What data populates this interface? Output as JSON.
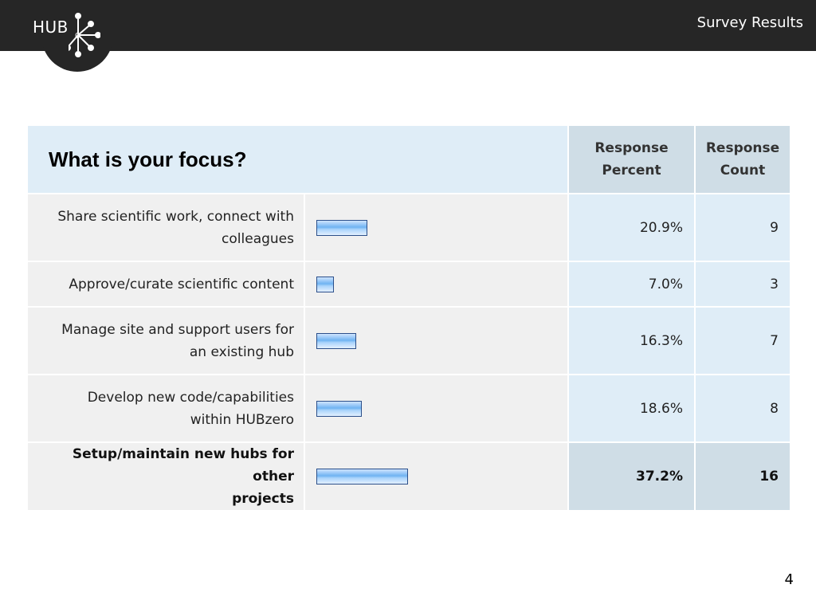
{
  "header": {
    "logo_text": "HUB",
    "title": "Survey Results"
  },
  "chart_data": {
    "type": "table",
    "title": "What is your focus?",
    "columns": [
      "Response Percent",
      "Response Count"
    ],
    "column_heads": [
      {
        "line1": "Response",
        "line2": "Percent"
      },
      {
        "line1": "Response",
        "line2": "Count"
      }
    ],
    "rows": [
      {
        "line1": "Share scientific work, connect with",
        "line2": "colleagues",
        "percent": 20.9,
        "percent_label": "20.9%",
        "count": 9,
        "count_label": "9"
      },
      {
        "line1": "Approve/curate scientific content",
        "line2": "",
        "percent": 7.0,
        "percent_label": "7.0%",
        "count": 3,
        "count_label": "3"
      },
      {
        "line1": "Manage site and support users for",
        "line2": "an existing hub",
        "percent": 16.3,
        "percent_label": "16.3%",
        "count": 7,
        "count_label": "7"
      },
      {
        "line1": "Develop new code/capabilities",
        "line2": "within HUBzero",
        "percent": 18.6,
        "percent_label": "18.6%",
        "count": 8,
        "count_label": "8"
      },
      {
        "line1": "Setup/maintain new hubs for other",
        "line2": "projects",
        "percent": 37.2,
        "percent_label": "37.2%",
        "count": 16,
        "count_label": "16",
        "highlight": true
      }
    ]
  },
  "footer": {
    "page_number": "4"
  }
}
